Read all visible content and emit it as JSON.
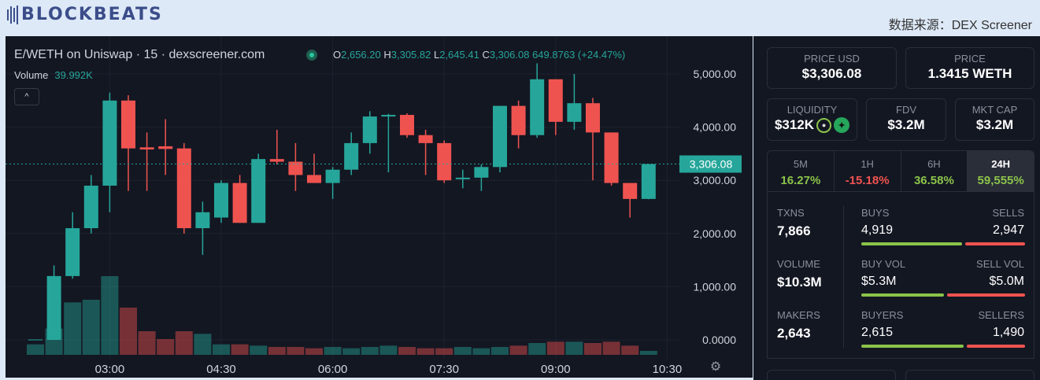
{
  "header": {
    "logo_text": "BLOCKBEATS",
    "source": "数据来源：DEX Screener"
  },
  "chart": {
    "title": "E/WETH on Uniswap · 15 · dexscreener.com",
    "ohlc": {
      "o_label": "O",
      "o": "2,656.20",
      "h_label": "H",
      "h": "3,305.82",
      "l_label": "L",
      "l": "2,645.41",
      "c_label": "C",
      "c": "3,306.08",
      "change": "649.8763 (+24.47%)"
    },
    "volume_label": "Volume",
    "volume_value": "39.992K",
    "collapse_icon": "chevron-up-icon",
    "settings_icon": "gear-icon",
    "colors": {
      "up": "#26a69a",
      "down": "#ef5350",
      "background": "#131722"
    }
  },
  "chart_data": {
    "type": "candlestick",
    "ylim": [
      0,
      5200
    ],
    "y_ticks": [
      "5,000.00",
      "4,000.00",
      "3,000.00",
      "2,000.00",
      "1,000.00",
      "0.0000"
    ],
    "y_tick_values": [
      5000,
      4000,
      3000,
      2000,
      1000,
      0
    ],
    "x_ticks": [
      "03:00",
      "04:30",
      "06:00",
      "07:30",
      "09:00",
      "10:30"
    ],
    "x_tick_index": [
      4,
      10,
      16,
      22,
      28,
      34
    ],
    "last_price": "3,306.08",
    "last_price_value": 3306,
    "candles": [
      {
        "o": 0,
        "h": 0,
        "l": 0,
        "c": 0,
        "v": 0.4
      },
      {
        "o": 0,
        "h": 1400,
        "l": 0,
        "c": 1200,
        "v": 1.0
      },
      {
        "o": 1200,
        "h": 2400,
        "l": 1150,
        "c": 2100,
        "v": 2.0
      },
      {
        "o": 2100,
        "h": 3100,
        "l": 2000,
        "c": 2900,
        "v": 2.1
      },
      {
        "o": 2900,
        "h": 4650,
        "l": 2400,
        "c": 4500,
        "v": 3.0
      },
      {
        "o": 4500,
        "h": 4600,
        "l": 2800,
        "c": 3600,
        "v": 1.8
      },
      {
        "o": 3620,
        "h": 3900,
        "l": 2800,
        "c": 3580,
        "v": 0.9
      },
      {
        "o": 3640,
        "h": 4150,
        "l": 3100,
        "c": 3590,
        "v": 0.6
      },
      {
        "o": 3600,
        "h": 3700,
        "l": 2000,
        "c": 2100,
        "v": 0.9
      },
      {
        "o": 2100,
        "h": 2600,
        "l": 1600,
        "c": 2400,
        "v": 0.8
      },
      {
        "o": 2300,
        "h": 3000,
        "l": 2200,
        "c": 2950,
        "v": 0.4
      },
      {
        "o": 2950,
        "h": 3100,
        "l": 2200,
        "c": 2200,
        "v": 0.4
      },
      {
        "o": 2200,
        "h": 3500,
        "l": 2200,
        "c": 3400,
        "v": 0.35
      },
      {
        "o": 3400,
        "h": 3950,
        "l": 3300,
        "c": 3350,
        "v": 0.3
      },
      {
        "o": 3350,
        "h": 3700,
        "l": 2800,
        "c": 3100,
        "v": 0.3
      },
      {
        "o": 3100,
        "h": 3500,
        "l": 2950,
        "c": 2950,
        "v": 0.25
      },
      {
        "o": 2950,
        "h": 3250,
        "l": 2650,
        "c": 3200,
        "v": 0.3
      },
      {
        "o": 3200,
        "h": 3900,
        "l": 3100,
        "c": 3700,
        "v": 0.25
      },
      {
        "o": 3700,
        "h": 4300,
        "l": 3500,
        "c": 4200,
        "v": 0.3
      },
      {
        "o": 4200,
        "h": 4250,
        "l": 3150,
        "c": 4230,
        "v": 0.35
      },
      {
        "o": 4230,
        "h": 4260,
        "l": 3800,
        "c": 3850,
        "v": 0.3
      },
      {
        "o": 3850,
        "h": 3950,
        "l": 3100,
        "c": 3700,
        "v": 0.25
      },
      {
        "o": 3700,
        "h": 3750,
        "l": 2950,
        "c": 3000,
        "v": 0.25
      },
      {
        "o": 3050,
        "h": 3200,
        "l": 2850,
        "c": 3050,
        "v": 0.3
      },
      {
        "o": 3050,
        "h": 3300,
        "l": 2800,
        "c": 3250,
        "v": 0.25
      },
      {
        "o": 3250,
        "h": 4400,
        "l": 3150,
        "c": 4400,
        "v": 0.3
      },
      {
        "o": 4400,
        "h": 4500,
        "l": 3600,
        "c": 3850,
        "v": 0.35
      },
      {
        "o": 3850,
        "h": 5200,
        "l": 3800,
        "c": 4900,
        "v": 0.45
      },
      {
        "o": 4900,
        "h": 4900,
        "l": 3850,
        "c": 4100,
        "v": 0.5
      },
      {
        "o": 4100,
        "h": 5000,
        "l": 3950,
        "c": 4450,
        "v": 0.5
      },
      {
        "o": 4450,
        "h": 4550,
        "l": 3000,
        "c": 3900,
        "v": 0.45
      },
      {
        "o": 3900,
        "h": 3900,
        "l": 2900,
        "c": 2950,
        "v": 0.5
      },
      {
        "o": 2950,
        "h": 2950,
        "l": 2300,
        "c": 2650,
        "v": 0.35
      },
      {
        "o": 2650,
        "h": 3306,
        "l": 2645,
        "c": 3306,
        "v": 0.15
      }
    ]
  },
  "stats": {
    "price_usd": {
      "label": "PRICE USD",
      "value": "$3,306.08"
    },
    "price": {
      "label": "PRICE",
      "value": "1.3415 WETH"
    },
    "liquidity": {
      "label": "LIQUIDITY",
      "value": "$312K",
      "lock_icon": "lock-icon",
      "dex_icon": "uniswap-icon"
    },
    "fdv": {
      "label": "FDV",
      "value": "$3.2M"
    },
    "mkt_cap": {
      "label": "MKT CAP",
      "value": "$3.2M"
    },
    "tabs": [
      {
        "label": "5M",
        "value": "16.27%",
        "color": "#8bc34a"
      },
      {
        "label": "1H",
        "value": "-15.18%",
        "color": "#ef5350"
      },
      {
        "label": "6H",
        "value": "36.58%",
        "color": "#8bc34a"
      },
      {
        "label": "24H",
        "value": "59,555%",
        "color": "#8bc34a"
      }
    ],
    "active_tab": "24H",
    "txns": {
      "label": "TXNS",
      "value": "7,866"
    },
    "volume": {
      "label": "VOLUME",
      "value": "$10.3M"
    },
    "makers": {
      "label": "MAKERS",
      "value": "2,643"
    },
    "buys": {
      "label": "BUYS",
      "value": "4,919",
      "share": 0.625
    },
    "sells": {
      "label": "SELLS",
      "value": "2,947",
      "share": 0.375
    },
    "buy_vol": {
      "label": "BUY VOL",
      "value": "$5.3M",
      "share": 0.515
    },
    "sell_vol": {
      "label": "SELL VOL",
      "value": "$5.0M",
      "share": 0.485
    },
    "buyers": {
      "label": "BUYERS",
      "value": "2,615",
      "share": 0.637
    },
    "sellers": {
      "label": "SELLERS",
      "value": "1,490",
      "share": 0.363
    }
  }
}
